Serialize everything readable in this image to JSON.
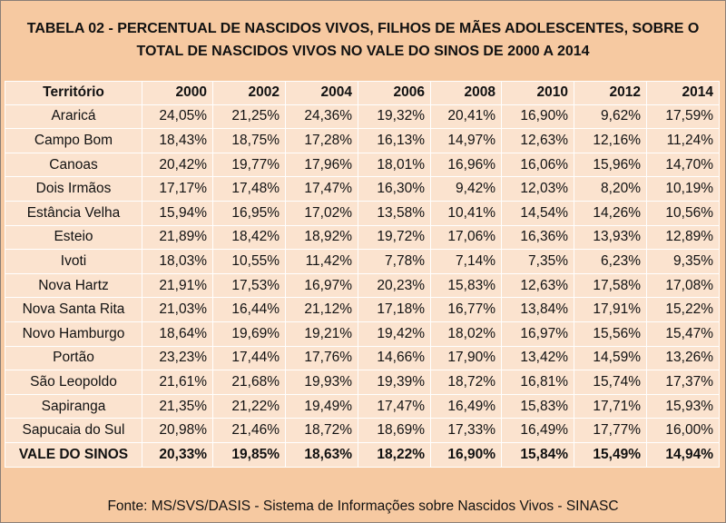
{
  "title": {
    "line1": "TABELA 02 - PERCENTUAL DE NASCIDOS VIVOS, FILHOS DE MÃES ADOLESCENTES, SOBRE O",
    "line2": "TOTAL DE NASCIDOS VIVOS NO VALE DO SINOS DE 2000 A 2014"
  },
  "table": {
    "headers": [
      "Território",
      "2000",
      "2002",
      "2004",
      "2006",
      "2008",
      "2010",
      "2012",
      "2014"
    ],
    "rows": [
      [
        "Araricá",
        "24,05%",
        "21,25%",
        "24,36%",
        "19,32%",
        "20,41%",
        "16,90%",
        "9,62%",
        "17,59%"
      ],
      [
        "Campo Bom",
        "18,43%",
        "18,75%",
        "17,28%",
        "16,13%",
        "14,97%",
        "12,63%",
        "12,16%",
        "11,24%"
      ],
      [
        "Canoas",
        "20,42%",
        "19,77%",
        "17,96%",
        "18,01%",
        "16,96%",
        "16,06%",
        "15,96%",
        "14,70%"
      ],
      [
        "Dois Irmãos",
        "17,17%",
        "17,48%",
        "17,47%",
        "16,30%",
        "9,42%",
        "12,03%",
        "8,20%",
        "10,19%"
      ],
      [
        "Estância Velha",
        "15,94%",
        "16,95%",
        "17,02%",
        "13,58%",
        "10,41%",
        "14,54%",
        "14,26%",
        "10,56%"
      ],
      [
        "Esteio",
        "21,89%",
        "18,42%",
        "18,92%",
        "19,72%",
        "17,06%",
        "16,36%",
        "13,93%",
        "12,89%"
      ],
      [
        "Ivoti",
        "18,03%",
        "10,55%",
        "11,42%",
        "7,78%",
        "7,14%",
        "7,35%",
        "6,23%",
        "9,35%"
      ],
      [
        "Nova Hartz",
        "21,91%",
        "17,53%",
        "16,97%",
        "20,23%",
        "15,83%",
        "12,63%",
        "17,58%",
        "17,08%"
      ],
      [
        "Nova Santa Rita",
        "21,03%",
        "16,44%",
        "21,12%",
        "17,18%",
        "16,77%",
        "13,84%",
        "17,91%",
        "15,22%"
      ],
      [
        "Novo Hamburgo",
        "18,64%",
        "19,69%",
        "19,21%",
        "19,42%",
        "18,02%",
        "16,97%",
        "15,56%",
        "15,47%"
      ],
      [
        "Portão",
        "23,23%",
        "17,44%",
        "17,76%",
        "14,66%",
        "17,90%",
        "13,42%",
        "14,59%",
        "13,26%"
      ],
      [
        "São Leopoldo",
        "21,61%",
        "21,68%",
        "19,93%",
        "19,39%",
        "18,72%",
        "16,81%",
        "15,74%",
        "17,37%"
      ],
      [
        "Sapiranga",
        "21,35%",
        "21,22%",
        "19,49%",
        "17,47%",
        "16,49%",
        "15,83%",
        "17,71%",
        "15,93%"
      ],
      [
        "Sapucaia do Sul",
        "20,98%",
        "21,46%",
        "18,72%",
        "18,69%",
        "17,33%",
        "16,49%",
        "17,77%",
        "16,00%"
      ]
    ],
    "total": [
      "VALE DO SINOS",
      "20,33%",
      "19,85%",
      "18,63%",
      "18,22%",
      "16,90%",
      "15,84%",
      "15,49%",
      "14,94%"
    ]
  },
  "footer": "Fonte: MS/SVS/DASIS - Sistema de Informações sobre Nascidos Vivos - SINASC"
}
